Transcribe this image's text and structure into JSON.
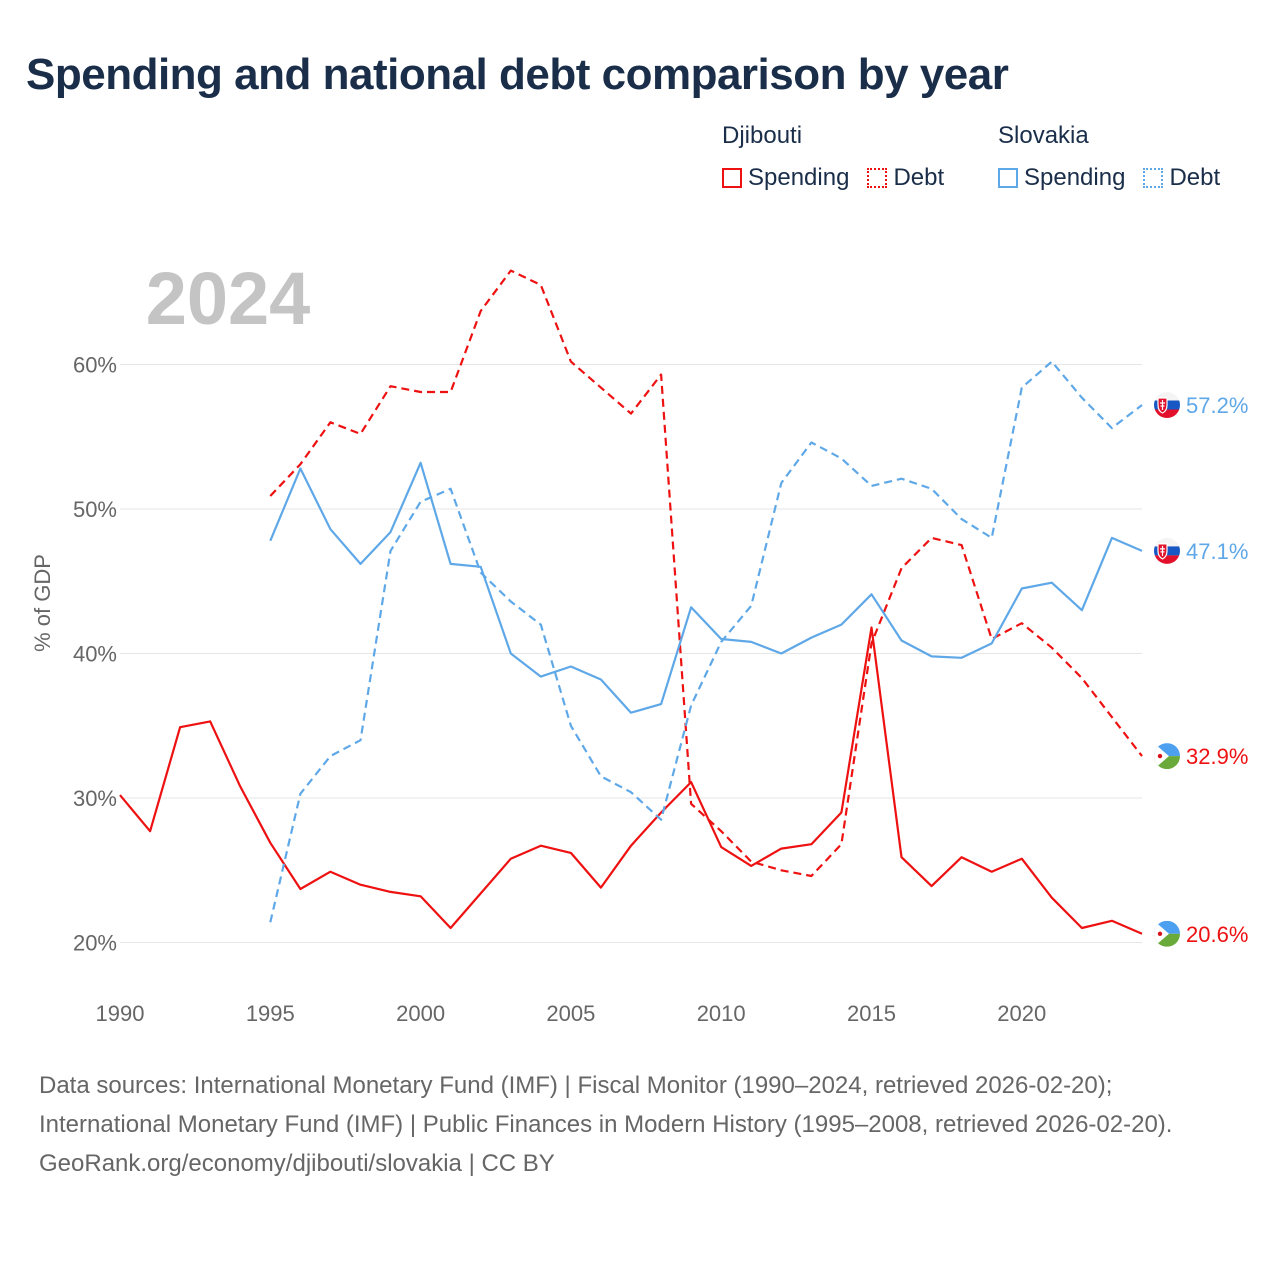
{
  "title": "Spending and national debt comparison by year",
  "year_label": "2024",
  "legend": {
    "groups": [
      {
        "country": "Djibouti",
        "color": "#ee1111",
        "items": [
          {
            "label": "Spending",
            "style": "solid"
          },
          {
            "label": "Debt",
            "style": "dotted"
          }
        ]
      },
      {
        "country": "Slovakia",
        "color": "#5fa8e8",
        "items": [
          {
            "label": "Spending",
            "style": "solid"
          },
          {
            "label": "Debt",
            "style": "dotted"
          }
        ]
      }
    ]
  },
  "footer": {
    "sources": "Data sources: International Monetary Fund (IMF) | Fiscal Monitor (1990–2024, retrieved 2026-02-20); International Monetary Fund (IMF) | Public Finances in Modern History (1995–2008, retrieved 2026-02-20).",
    "credit": "GeoRank.org/economy/djibouti/slovakia | CC BY"
  },
  "chart_data": {
    "type": "line",
    "title": "Spending and national debt comparison by year",
    "xlabel": "",
    "ylabel": "% of GDP",
    "xlim": [
      1990,
      2024
    ],
    "ylim": [
      17.5,
      66
    ],
    "x_ticks": [
      1990,
      1995,
      2000,
      2005,
      2010,
      2015,
      2020
    ],
    "x_tick_labels": [
      "1990",
      "1995",
      "2000",
      "2005",
      "2010",
      "2015",
      "2020"
    ],
    "y_ticks": [
      20,
      30,
      40,
      50,
      60
    ],
    "y_tick_labels": [
      "20%",
      "30%",
      "40%",
      "50%",
      "60%"
    ],
    "grid": true,
    "series": [
      {
        "name": "Djibouti Spending",
        "country": "Djibouti",
        "color": "#ee1111",
        "dash": "solid",
        "flag": "djibouti",
        "end_label": "20.6%",
        "x": [
          1990,
          1991,
          1992,
          1993,
          1994,
          1995,
          1996,
          1997,
          1998,
          1999,
          2000,
          2001,
          2002,
          2003,
          2004,
          2005,
          2006,
          2007,
          2008,
          2009,
          2010,
          2011,
          2012,
          2013,
          2014,
          2015,
          2016,
          2017,
          2018,
          2019,
          2020,
          2021,
          2022,
          2023,
          2024
        ],
        "values": [
          30.2,
          27.7,
          34.9,
          35.3,
          30.8,
          26.9,
          23.7,
          24.9,
          24.0,
          23.5,
          23.2,
          21.0,
          23.4,
          25.8,
          26.7,
          26.2,
          23.8,
          26.7,
          29.0,
          31.1,
          26.6,
          25.3,
          26.5,
          26.8,
          29.0,
          41.8,
          25.9,
          23.9,
          25.9,
          24.9,
          25.8,
          23.1,
          21.0,
          21.5,
          20.6
        ]
      },
      {
        "name": "Djibouti Debt",
        "country": "Djibouti",
        "color": "#ee1111",
        "dash": "dashed",
        "flag": "djibouti",
        "end_label": "32.9%",
        "x": [
          1995,
          1996,
          1997,
          1998,
          1999,
          2000,
          2001,
          2002,
          2003,
          2004,
          2005,
          2006,
          2007,
          2008,
          2009,
          2010,
          2011,
          2012,
          2013,
          2014,
          2015,
          2016,
          2017,
          2018,
          2019,
          2020,
          2021,
          2022,
          2023,
          2024
        ],
        "values": [
          50.9,
          53.1,
          56.0,
          55.2,
          58.5,
          58.1,
          58.1,
          63.7,
          66.5,
          65.5,
          60.2,
          58.4,
          56.6,
          59.3,
          29.6,
          27.7,
          25.6,
          25.0,
          24.6,
          26.8,
          40.7,
          45.9,
          48.0,
          47.5,
          41.0,
          42.1,
          40.4,
          38.3,
          35.6,
          32.9
        ]
      },
      {
        "name": "Slovakia Spending",
        "country": "Slovakia",
        "color": "#5fa8e8",
        "dash": "solid",
        "flag": "slovakia",
        "end_label": "47.1%",
        "x": [
          1995,
          1996,
          1997,
          1998,
          1999,
          2000,
          2001,
          2002,
          2003,
          2004,
          2005,
          2006,
          2007,
          2008,
          2009,
          2010,
          2011,
          2012,
          2013,
          2014,
          2015,
          2016,
          2017,
          2018,
          2019,
          2020,
          2021,
          2022,
          2023,
          2024
        ],
        "values": [
          47.8,
          52.8,
          48.6,
          46.2,
          48.4,
          53.2,
          46.2,
          46.0,
          40.0,
          38.4,
          39.1,
          38.2,
          35.9,
          36.5,
          43.2,
          41.0,
          40.8,
          40.0,
          41.1,
          42.0,
          44.1,
          40.9,
          39.8,
          39.7,
          40.7,
          44.5,
          44.9,
          43.0,
          48.0,
          47.1
        ]
      },
      {
        "name": "Slovakia Debt",
        "country": "Slovakia",
        "color": "#5fa8e8",
        "dash": "dashed",
        "flag": "slovakia",
        "end_label": "57.2%",
        "x": [
          1995,
          1996,
          1997,
          1998,
          1999,
          2000,
          2001,
          2002,
          2003,
          2004,
          2005,
          2006,
          2007,
          2008,
          2009,
          2010,
          2011,
          2012,
          2013,
          2014,
          2015,
          2016,
          2017,
          2018,
          2019,
          2020,
          2021,
          2022,
          2023,
          2024
        ],
        "values": [
          21.4,
          30.3,
          32.9,
          34.0,
          47.1,
          50.5,
          51.4,
          45.6,
          43.6,
          42.0,
          35.0,
          31.5,
          30.4,
          28.5,
          36.4,
          40.8,
          43.3,
          51.8,
          54.6,
          53.5,
          51.6,
          52.1,
          51.4,
          49.3,
          48.0,
          58.4,
          60.2,
          57.7,
          55.6,
          57.2
        ]
      }
    ]
  }
}
